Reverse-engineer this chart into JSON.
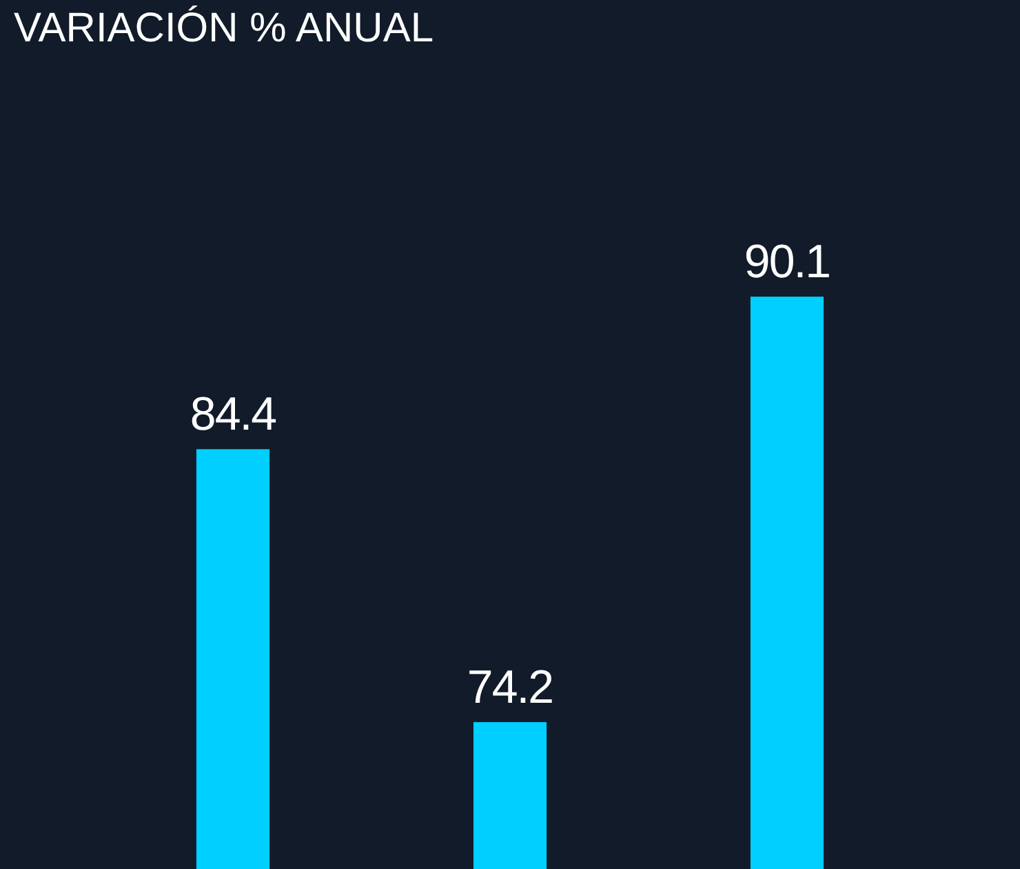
{
  "chart_data": {
    "type": "bar",
    "title": "VARIACIÓN % ANUAL",
    "categories": [
      null,
      null,
      null
    ],
    "values": [
      84.4,
      74.2,
      90.1
    ],
    "color": "#00cfff",
    "data_labels": true
  }
}
